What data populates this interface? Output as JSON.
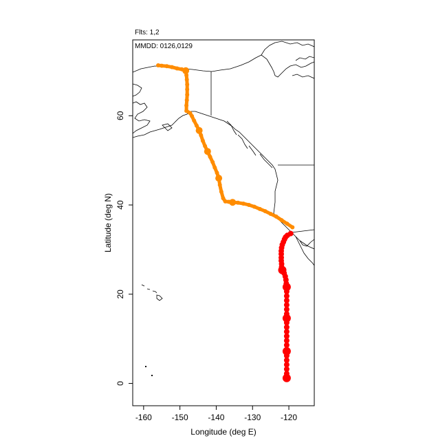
{
  "header": {
    "flights": "Flts: 1,2",
    "dates": "MMDD: 0126,0129"
  },
  "chart_data": {
    "type": "scatter",
    "xlabel": "Longitude (deg E)",
    "ylabel": "Latitude (deg N)",
    "xlim": [
      -163,
      -113
    ],
    "ylim": [
      -5,
      77
    ],
    "xticks": [
      -160,
      -150,
      -140,
      -130,
      -120
    ],
    "yticks": [
      0,
      20,
      40,
      60
    ],
    "grid": false,
    "series": [
      {
        "color": "#ff0000",
        "points": [
          [
            -119.5,
            33.6,
            4
          ],
          [
            -120.4,
            33.2,
            4
          ],
          [
            -120.9,
            32.8,
            4
          ],
          [
            -121.2,
            32.3,
            4
          ],
          [
            -121.5,
            31.7,
            4
          ],
          [
            -121.8,
            31.1,
            4
          ],
          [
            -122.0,
            30.4,
            4
          ],
          [
            -122.1,
            29.7,
            4
          ],
          [
            -122.1,
            29.0,
            4
          ],
          [
            -122.1,
            28.2,
            4
          ],
          [
            -122.1,
            27.5,
            4
          ],
          [
            -122.0,
            26.8,
            4
          ],
          [
            -122.0,
            26.1,
            4
          ],
          [
            -121.8,
            25.4,
            6
          ],
          [
            -121.3,
            24.7,
            4
          ],
          [
            -121.0,
            24.0,
            4
          ],
          [
            -120.8,
            23.2,
            4
          ],
          [
            -120.7,
            22.4,
            4
          ],
          [
            -120.6,
            21.6,
            6
          ],
          [
            -120.6,
            20.6,
            4
          ],
          [
            -120.6,
            19.6,
            4
          ],
          [
            -120.6,
            18.6,
            4
          ],
          [
            -120.6,
            17.6,
            4
          ],
          [
            -120.6,
            16.6,
            4
          ],
          [
            -120.6,
            15.6,
            4
          ],
          [
            -120.6,
            14.6,
            6
          ],
          [
            -120.6,
            13.6,
            4
          ],
          [
            -120.6,
            12.6,
            4
          ],
          [
            -120.6,
            11.6,
            4
          ],
          [
            -120.6,
            10.6,
            4
          ],
          [
            -120.6,
            9.6,
            4
          ],
          [
            -120.6,
            8.6,
            4
          ],
          [
            -120.6,
            7.2,
            6
          ],
          [
            -120.6,
            6.2,
            4
          ],
          [
            -120.6,
            5.2,
            4
          ],
          [
            -120.6,
            4.2,
            4
          ],
          [
            -120.6,
            3.2,
            4
          ],
          [
            -120.6,
            2.2,
            4
          ],
          [
            -120.6,
            1.2,
            6
          ]
        ]
      },
      {
        "color": "#ff8c00",
        "points": [
          [
            -119.0,
            35.0,
            3
          ],
          [
            -120.5,
            35.8,
            3
          ],
          [
            -122.0,
            36.6,
            3
          ],
          [
            -123.5,
            37.4,
            3
          ],
          [
            -125.0,
            38.0,
            3
          ],
          [
            -126.5,
            38.6,
            3
          ],
          [
            -128.0,
            39.1,
            3
          ],
          [
            -129.5,
            39.6,
            3
          ],
          [
            -131.0,
            40.0,
            3
          ],
          [
            -132.5,
            40.3,
            3
          ],
          [
            -134.0,
            40.5,
            3
          ],
          [
            -135.5,
            40.6,
            5
          ],
          [
            -136.5,
            40.7,
            3
          ],
          [
            -137.5,
            40.8,
            3
          ],
          [
            -138.1,
            41.5,
            3
          ],
          [
            -138.6,
            43.0,
            3
          ],
          [
            -139.0,
            44.5,
            3
          ],
          [
            -139.3,
            46.0,
            5
          ],
          [
            -139.8,
            47.2,
            3
          ],
          [
            -140.4,
            48.4,
            3
          ],
          [
            -141.0,
            49.6,
            3
          ],
          [
            -141.7,
            50.8,
            3
          ],
          [
            -142.4,
            52.0,
            5
          ],
          [
            -143.1,
            53.2,
            3
          ],
          [
            -143.7,
            54.4,
            3
          ],
          [
            -144.2,
            55.6,
            3
          ],
          [
            -144.7,
            56.7,
            5
          ],
          [
            -145.4,
            57.8,
            3
          ],
          [
            -146.1,
            58.9,
            3
          ],
          [
            -146.7,
            59.9,
            3
          ],
          [
            -147.2,
            60.6,
            3
          ],
          [
            -148.2,
            61.1,
            3
          ],
          [
            -148.2,
            62.3,
            3
          ],
          [
            -148.1,
            63.5,
            3
          ],
          [
            -148.0,
            64.7,
            3
          ],
          [
            -148.0,
            65.9,
            3
          ],
          [
            -148.0,
            67.0,
            3
          ],
          [
            -148.1,
            68.1,
            3
          ],
          [
            -148.2,
            69.1,
            3
          ],
          [
            -148.4,
            70.1,
            5
          ],
          [
            -149.5,
            70.4,
            3
          ],
          [
            -150.8,
            70.6,
            3
          ],
          [
            -152.2,
            70.9,
            3
          ],
          [
            -153.6,
            71.1,
            3
          ],
          [
            -155.0,
            71.2,
            3
          ],
          [
            -156.0,
            71.3,
            3
          ]
        ]
      }
    ]
  }
}
